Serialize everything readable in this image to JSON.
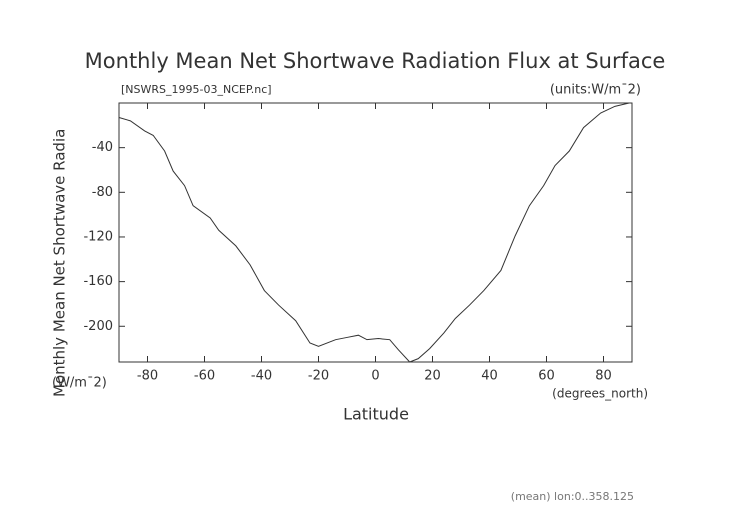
{
  "chart_data": {
    "type": "line",
    "title": "Monthly Mean Net Shortwave Radiation Flux at Surface",
    "subtitle": "[NSWRS_1995-03_NCEP.nc]",
    "units": "(units:W/m¯2)",
    "y_label": "Monthly Mean Net Shortwave Radia",
    "y_unit": "(W/m¯2)",
    "x_label": "Latitude",
    "x_unit": "(degrees_north)",
    "footnote": "(mean) lon:0..358.125",
    "xlim": [
      -90,
      90
    ],
    "ylim": [
      -232,
      0
    ],
    "xticks": [
      -80,
      -60,
      -40,
      -20,
      0,
      20,
      40,
      60,
      80
    ],
    "yticks": [
      -200,
      -160,
      -120,
      -80,
      -40
    ],
    "color": "#333333",
    "x": [
      -90,
      -86,
      -81,
      -78,
      -74,
      -71,
      -67,
      -64,
      -58,
      -55,
      -49,
      -44,
      -39,
      -34,
      -28,
      -23,
      -20,
      -14,
      -10,
      -6,
      -3,
      1,
      5,
      8,
      12,
      15,
      19,
      24,
      28,
      33,
      38,
      44,
      49,
      54,
      59,
      63,
      68,
      73,
      79,
      84,
      89
    ],
    "values": [
      -13,
      -16,
      -25,
      -29,
      -43,
      -61,
      -74,
      -92,
      -103,
      -114,
      -128,
      -145,
      -168,
      -181,
      -195,
      -215,
      -218,
      -212,
      -210,
      -208,
      -212,
      -211,
      -212,
      -221,
      -232,
      -229,
      -220,
      -206,
      -193,
      -181,
      -168,
      -150,
      -119,
      -92,
      -74,
      -56,
      -43,
      -22,
      -9,
      -3,
      0
    ]
  }
}
